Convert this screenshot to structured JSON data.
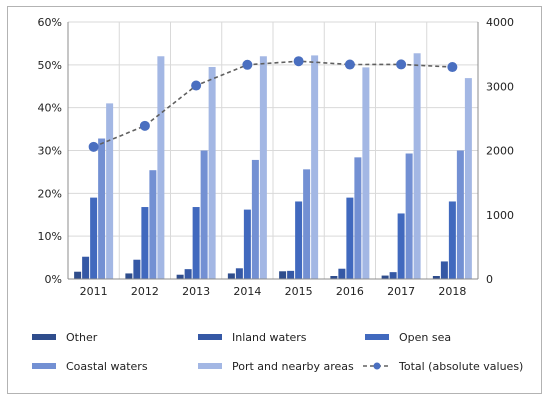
{
  "chart_data": {
    "type": "bar",
    "categories": [
      "2011",
      "2012",
      "2013",
      "2014",
      "2015",
      "2016",
      "2017",
      "2018"
    ],
    "y_left": {
      "ylim": [
        0,
        60
      ],
      "ticks": [
        "0%",
        "10%",
        "20%",
        "30%",
        "40%",
        "50%",
        "60%"
      ],
      "tick_values": [
        0,
        10,
        20,
        30,
        40,
        50,
        60
      ]
    },
    "y_right": {
      "ylim": [
        0,
        4000
      ],
      "ticks": [
        "0",
        "1000",
        "2000",
        "3000",
        "4000"
      ],
      "tick_values": [
        0,
        1000,
        2000,
        3000,
        4000
      ]
    },
    "series": [
      {
        "name": "Other",
        "kind": "bar",
        "axis": "left",
        "color": "#2f4d8c",
        "values": [
          1.7,
          1.3,
          1.0,
          1.3,
          1.8,
          0.7,
          0.8,
          0.7
        ]
      },
      {
        "name": "Inland waters",
        "kind": "bar",
        "axis": "left",
        "color": "#3558a5",
        "values": [
          5.2,
          4.5,
          2.3,
          2.5,
          1.9,
          2.4,
          1.6,
          4.1
        ]
      },
      {
        "name": "Open sea",
        "kind": "bar",
        "axis": "left",
        "color": "#4169be",
        "values": [
          19.0,
          16.8,
          16.8,
          16.2,
          18.1,
          19.0,
          15.3,
          18.1
        ]
      },
      {
        "name": "Coastal waters",
        "kind": "bar",
        "axis": "left",
        "color": "#7390d3",
        "values": [
          32.8,
          25.4,
          30.0,
          27.8,
          25.6,
          28.4,
          29.3,
          30.0
        ]
      },
      {
        "name": "Port and nearby areas",
        "kind": "bar",
        "axis": "left",
        "color": "#a3b7e4",
        "values": [
          41.0,
          52.0,
          49.5,
          52.0,
          52.2,
          49.4,
          52.7,
          46.9
        ]
      },
      {
        "name": "Total (absolute values)",
        "kind": "line",
        "axis": "right",
        "color": "#606060",
        "marker_color": "#4a6fc0",
        "values": [
          2057,
          2384,
          3011,
          3334,
          3390,
          3338,
          3340,
          3299
        ]
      }
    ],
    "grid": true,
    "legend_position": "bottom"
  }
}
